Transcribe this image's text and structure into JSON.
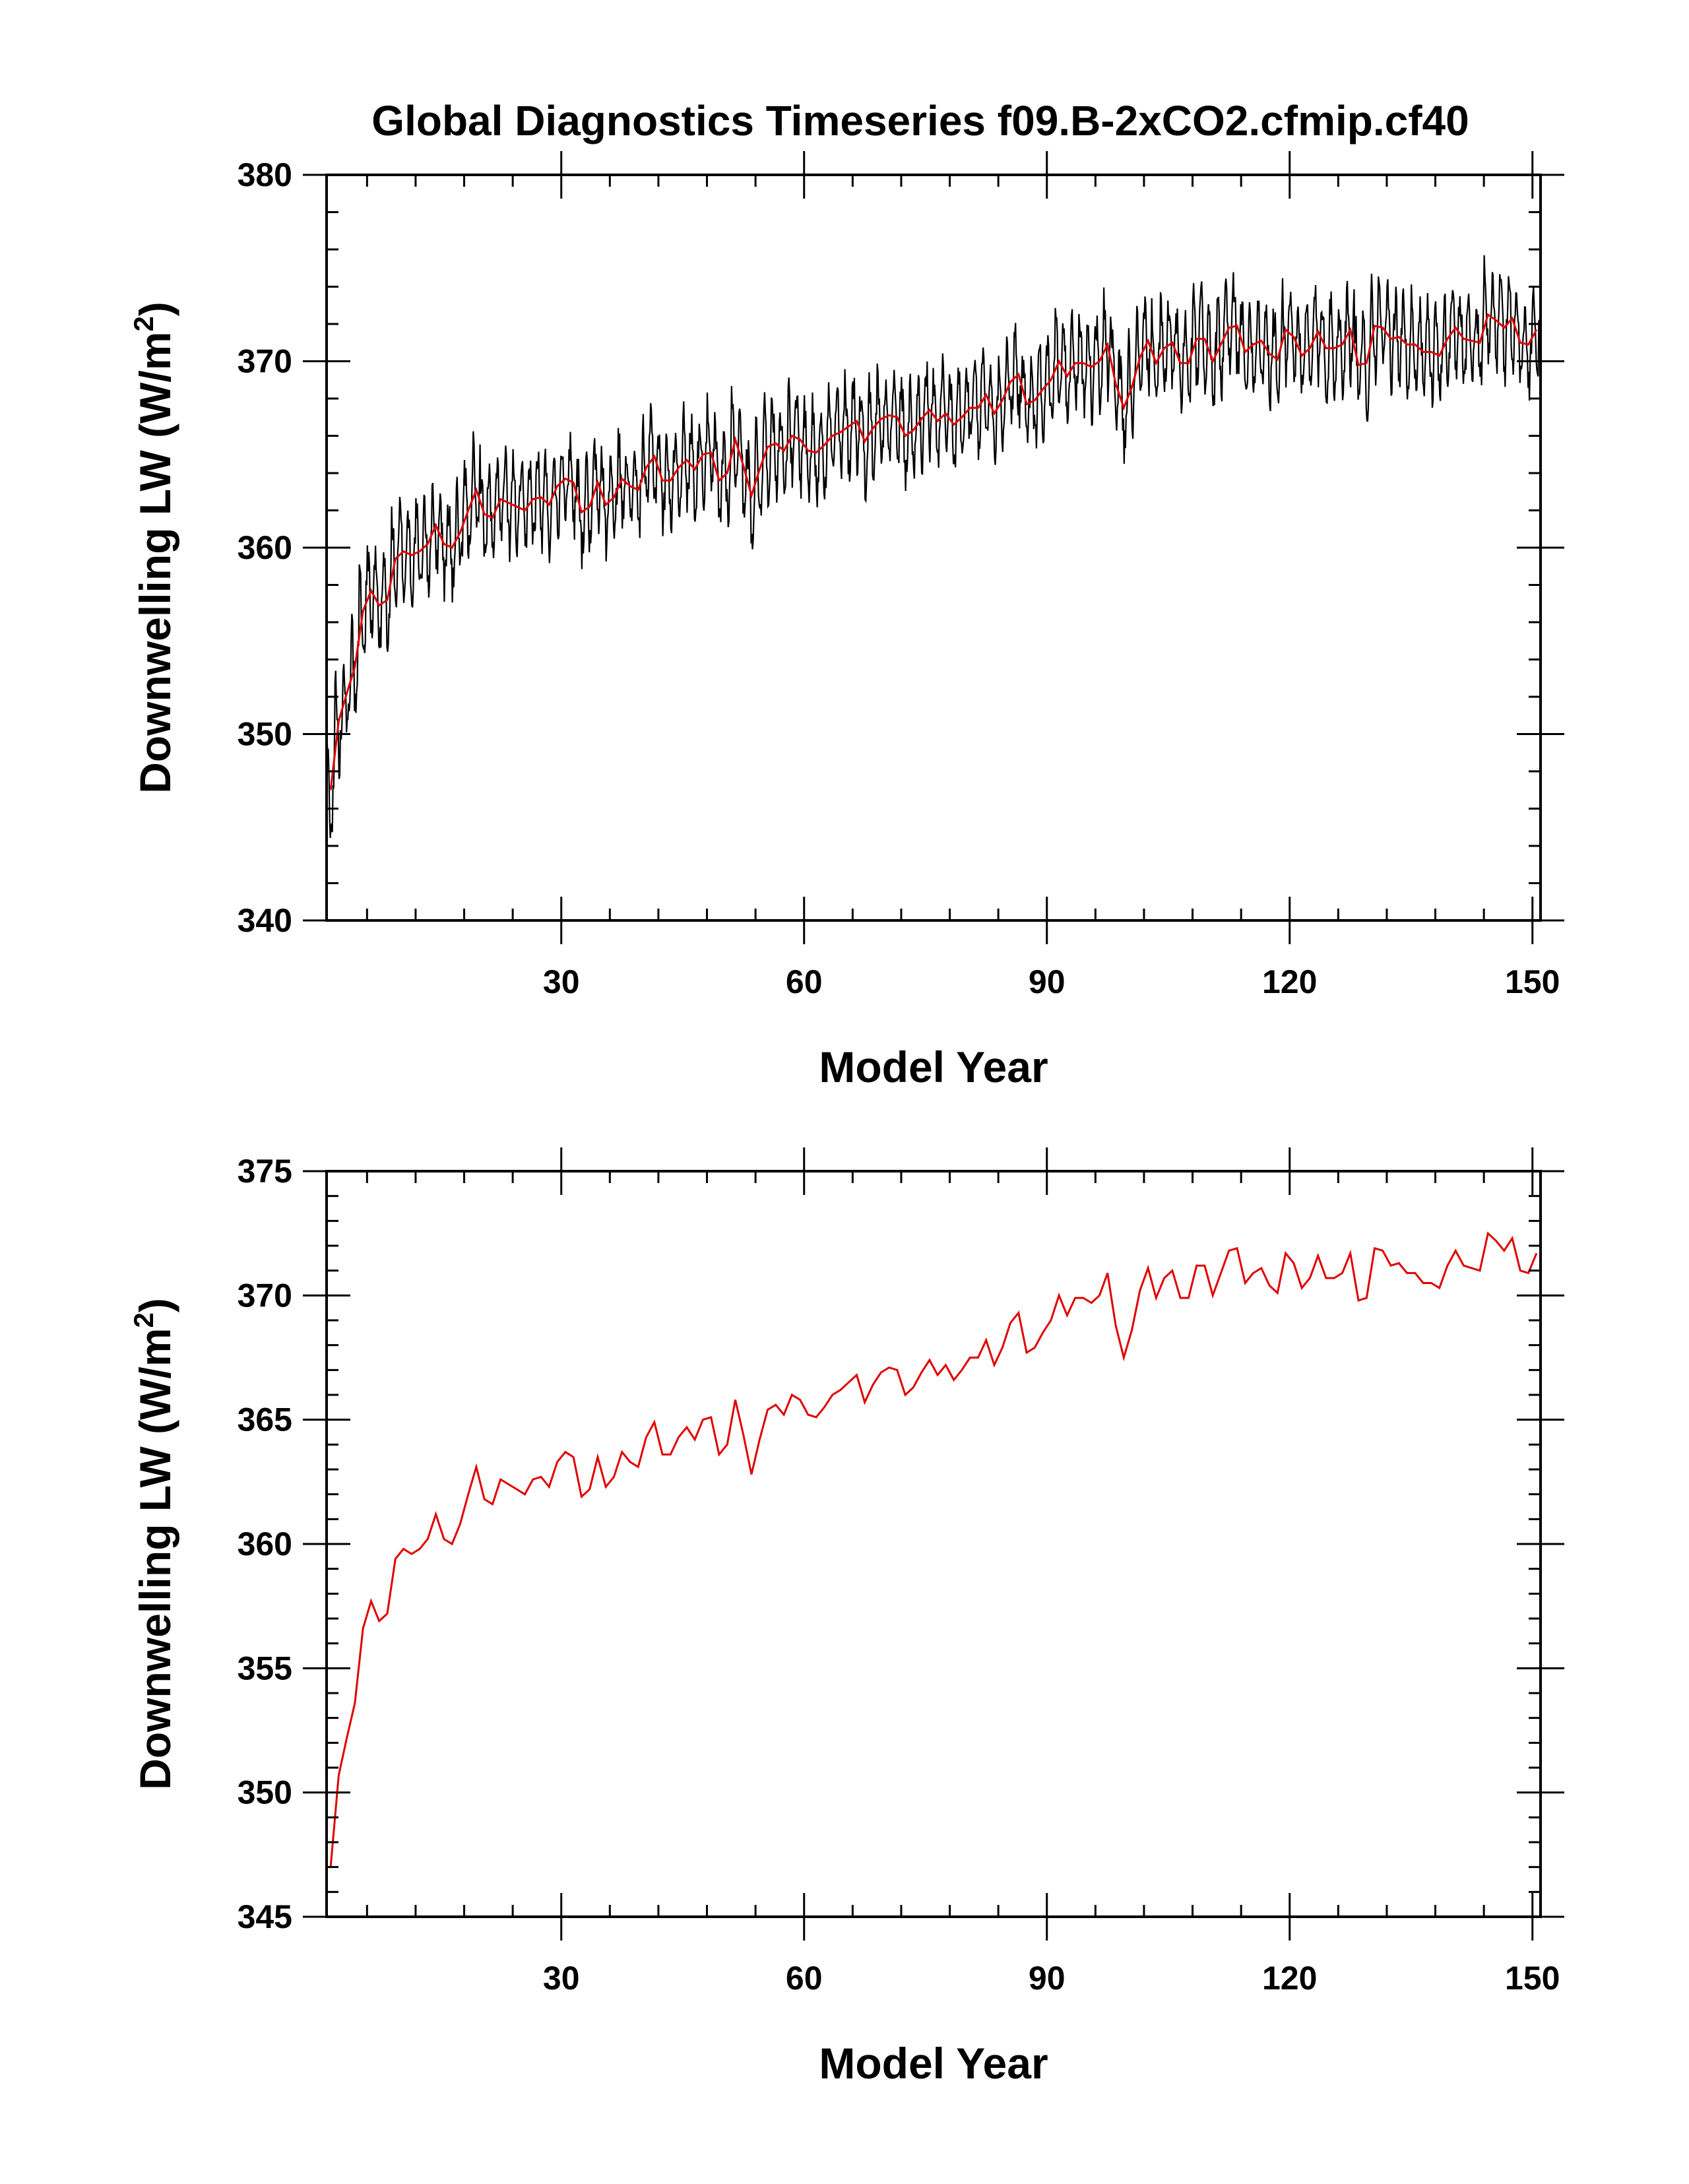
{
  "title": "Global Diagnostics Timeseries f09.B-2xCO2.cfmip.cf40",
  "colors": {
    "monthly": "#000000",
    "annual": "#e00000",
    "background": "#ffffff"
  },
  "chart_data": [
    {
      "type": "line",
      "xlabel": "Model Year",
      "ylabel": "Downwelling LW (W/m",
      "ylabel_sup": "2",
      "ylabel_close": ")",
      "xlim": [
        1,
        151
      ],
      "ylim": [
        340,
        380
      ],
      "xticks": [
        30,
        60,
        90,
        120,
        150
      ],
      "xtick_labels": [
        "30",
        "60",
        "90",
        "120",
        "150"
      ],
      "yticks": [
        340,
        350,
        360,
        370,
        380
      ],
      "ytick_labels": [
        "340",
        "350",
        "360",
        "370",
        "380"
      ],
      "series": [
        {
          "color": "#000000",
          "kind": "monthly",
          "seasonal_amplitude": 2.2
        },
        {
          "color": "#e00000",
          "kind": "annual"
        }
      ]
    },
    {
      "type": "line",
      "xlabel": "Model Year",
      "ylabel": "Downwelling LW (W/m",
      "ylabel_sup": "2",
      "ylabel_close": ")",
      "xlim": [
        1,
        151
      ],
      "ylim": [
        345,
        375
      ],
      "xticks": [
        30,
        60,
        90,
        120,
        150
      ],
      "xtick_labels": [
        "30",
        "60",
        "90",
        "120",
        "150"
      ],
      "yticks": [
        345,
        350,
        355,
        360,
        365,
        370,
        375
      ],
      "ytick_labels": [
        "345",
        "350",
        "355",
        "360",
        "365",
        "370",
        "375"
      ],
      "series": [
        {
          "color": "#e00000",
          "kind": "annual"
        }
      ]
    }
  ],
  "annual_mean": {
    "x_start": 1,
    "values": [
      347.0,
      350.7,
      352.2,
      353.6,
      356.6,
      357.7,
      356.9,
      357.2,
      359.4,
      359.8,
      359.6,
      359.8,
      360.2,
      361.2,
      360.2,
      360.0,
      360.8,
      362.0,
      363.1,
      361.8,
      361.6,
      362.6,
      362.4,
      362.2,
      362.0,
      362.6,
      362.7,
      362.3,
      363.3,
      363.7,
      363.5,
      361.9,
      362.2,
      363.5,
      362.3,
      362.7,
      363.7,
      363.3,
      363.1,
      364.3,
      364.9,
      363.6,
      363.6,
      364.3,
      364.7,
      364.2,
      365.0,
      365.1,
      363.6,
      364.0,
      365.8,
      364.4,
      362.8,
      364.2,
      365.4,
      365.6,
      365.2,
      366.0,
      365.8,
      365.2,
      365.1,
      365.5,
      366.0,
      366.2,
      366.5,
      366.8,
      365.7,
      366.4,
      366.9,
      367.1,
      367.0,
      366.0,
      366.3,
      366.9,
      367.4,
      366.8,
      367.2,
      366.6,
      367.0,
      367.5,
      367.5,
      368.2,
      367.2,
      367.9,
      368.9,
      369.3,
      367.7,
      367.9,
      368.5,
      369.0,
      370.0,
      369.2,
      369.9,
      369.9,
      369.7,
      370.0,
      370.9,
      368.8,
      367.5,
      368.6,
      370.2,
      371.1,
      369.9,
      370.7,
      371.0,
      369.9,
      369.9,
      371.2,
      371.2,
      370.0,
      370.9,
      371.8,
      371.9,
      370.5,
      370.9,
      371.1,
      370.4,
      370.1,
      371.7,
      371.3,
      370.3,
      370.7,
      371.6,
      370.7,
      370.7,
      370.9,
      371.7,
      369.8,
      369.9,
      371.9,
      371.8,
      371.2,
      371.3,
      370.9,
      370.9,
      370.5,
      370.5,
      370.3,
      371.2,
      371.8,
      371.2,
      371.1,
      371.0,
      372.5,
      372.2,
      371.8,
      372.3,
      371.0,
      370.9,
      371.7
    ]
  }
}
